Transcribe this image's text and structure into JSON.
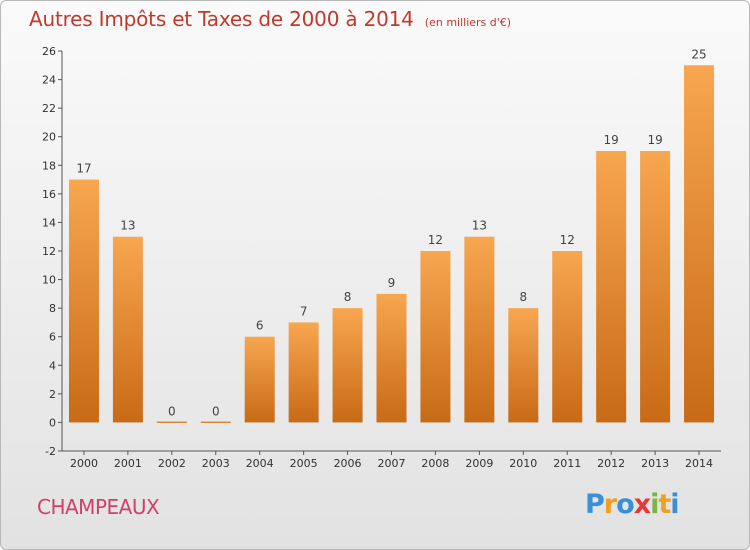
{
  "chart_data": {
    "type": "bar",
    "title": "Autres Impôts et Taxes de 2000 à 2014",
    "subtitle": "(en milliers d'€)",
    "categories": [
      "2000",
      "2001",
      "2002",
      "2003",
      "2004",
      "2005",
      "2006",
      "2007",
      "2008",
      "2009",
      "2010",
      "2011",
      "2012",
      "2013",
      "2014"
    ],
    "values": [
      17,
      13,
      0,
      0,
      6,
      7,
      8,
      9,
      12,
      13,
      8,
      12,
      19,
      19,
      25
    ],
    "data_labels": [
      "17",
      "13",
      "0",
      "0",
      "6",
      "7",
      "8",
      "9",
      "12",
      "13",
      "8",
      "12",
      "19",
      "19",
      "25"
    ],
    "y_ticks": [
      "-2",
      "0",
      "2",
      "4",
      "6",
      "8",
      "10",
      "12",
      "14",
      "16",
      "18",
      "20",
      "22",
      "24",
      "26"
    ],
    "ylim": [
      -2,
      26
    ],
    "grid": false,
    "bar_color": "#f0903a"
  },
  "commune": "CHAMPEAUX",
  "brand": {
    "letters": [
      "P",
      "r",
      "o",
      "x",
      "i",
      "t",
      "i"
    ],
    "colors": [
      "#3a8fd8",
      "#f0a020",
      "#3a8fd8",
      "#e53935",
      "#7cb342",
      "#f0a020",
      "#3a8fd8"
    ]
  }
}
